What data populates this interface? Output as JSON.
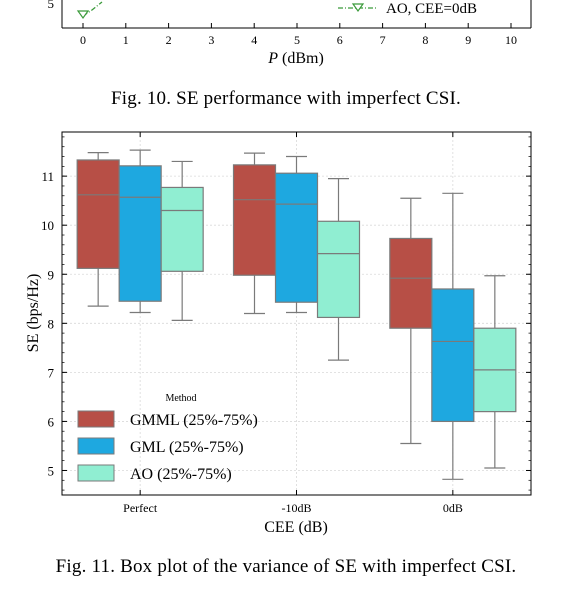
{
  "top_chart": {
    "y_tick": "5",
    "x_ticks": [
      "0",
      "1",
      "2",
      "3",
      "4",
      "5",
      "6",
      "7",
      "8",
      "9",
      "10"
    ],
    "x_label_italic": "P",
    "x_label_rest": " (dBm)",
    "legend_entry": "AO, CEE=0dB",
    "caption": "Fig. 10.   SE performance with imperfect CSI."
  },
  "chart_data": {
    "type": "box",
    "categories": [
      "Perfect",
      "-10dB",
      "0dB"
    ],
    "xlabel": "CEE (dB)",
    "ylabel": "SE (bps/Hz)",
    "ylim": [
      4.5,
      11.9
    ],
    "yticks": [
      "5",
      "6",
      "7",
      "8",
      "9",
      "10",
      "11"
    ],
    "grid": true,
    "legend": {
      "title": "Method",
      "placement": "bottom-left"
    },
    "series": [
      {
        "name": "GMML (25%-75%)",
        "color": "#b74f46",
        "boxes": [
          {
            "min": 8.35,
            "q1": 9.12,
            "median": 10.62,
            "q3": 11.33,
            "max": 11.48
          },
          {
            "min": 8.2,
            "q1": 8.98,
            "median": 10.52,
            "q3": 11.23,
            "max": 11.47
          },
          {
            "min": 5.55,
            "q1": 7.9,
            "median": 8.92,
            "q3": 9.73,
            "max": 10.55
          }
        ]
      },
      {
        "name": "GML (25%-75%)",
        "color": "#1ea8e0",
        "boxes": [
          {
            "min": 8.22,
            "q1": 8.45,
            "median": 10.57,
            "q3": 11.21,
            "max": 11.53
          },
          {
            "min": 8.22,
            "q1": 8.43,
            "median": 10.43,
            "q3": 11.06,
            "max": 11.4
          },
          {
            "min": 4.82,
            "q1": 6.0,
            "median": 7.63,
            "q3": 8.7,
            "max": 10.65
          }
        ]
      },
      {
        "name": "AO (25%-75%)",
        "color": "#90eed2",
        "boxes": [
          {
            "min": 8.06,
            "q1": 9.06,
            "median": 10.3,
            "q3": 10.77,
            "max": 11.3
          },
          {
            "min": 7.25,
            "q1": 8.12,
            "median": 9.42,
            "q3": 10.08,
            "max": 10.95
          },
          {
            "min": 5.05,
            "q1": 6.2,
            "median": 7.05,
            "q3": 7.9,
            "max": 8.97
          }
        ]
      }
    ],
    "caption": "Fig. 11.   Box plot of the variance of SE with imperfect CSI."
  }
}
